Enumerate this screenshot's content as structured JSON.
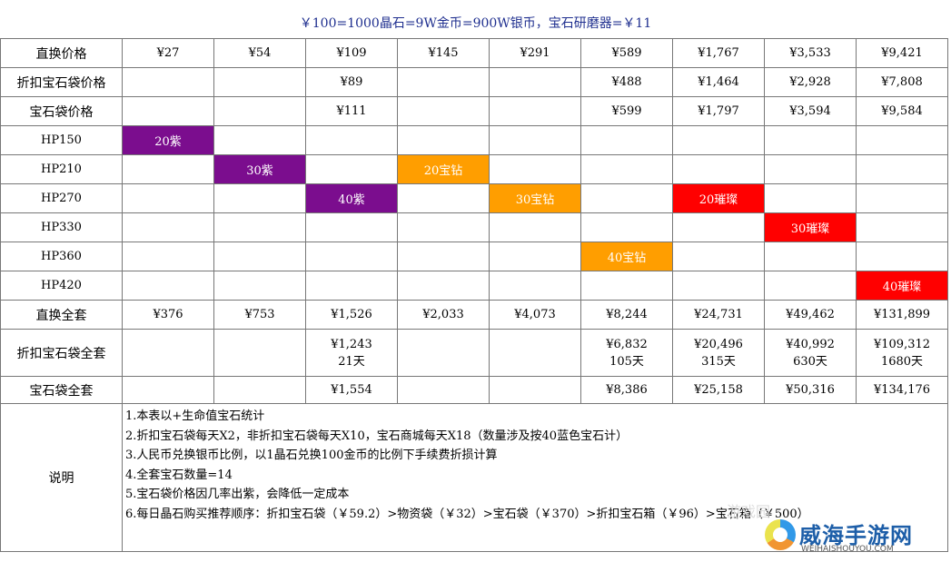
{
  "title": "￥100=1000晶石=9W金币=900W银币，宝石研磨器=￥11",
  "rows": {
    "direct_price": {
      "label": "直换价格",
      "cells": [
        "¥27",
        "¥54",
        "¥109",
        "¥145",
        "¥291",
        "¥589",
        "¥1,767",
        "¥3,533",
        "¥9,421"
      ]
    },
    "discount_bag_price": {
      "label": "折扣宝石袋价格",
      "cells": [
        "",
        "",
        "¥89",
        "",
        "",
        "¥488",
        "¥1,464",
        "¥2,928",
        "¥7,808"
      ]
    },
    "bag_price": {
      "label": "宝石袋价格",
      "cells": [
        "",
        "",
        "¥111",
        "",
        "",
        "¥599",
        "¥1,797",
        "¥3,594",
        "¥9,584"
      ]
    },
    "hp150": {
      "label": "HP150",
      "cells": [
        "20紫",
        "",
        "",
        "",
        "",
        "",
        "",
        "",
        ""
      ]
    },
    "hp210": {
      "label": "HP210",
      "cells": [
        "",
        "30紫",
        "",
        "20宝钻",
        "",
        "",
        "",
        "",
        ""
      ]
    },
    "hp270": {
      "label": "HP270",
      "cells": [
        "",
        "",
        "40紫",
        "",
        "30宝钻",
        "",
        "20璀璨",
        "",
        ""
      ]
    },
    "hp330": {
      "label": "HP330",
      "cells": [
        "",
        "",
        "",
        "",
        "",
        "",
        "",
        "30璀璨",
        ""
      ]
    },
    "hp360": {
      "label": "HP360",
      "cells": [
        "",
        "",
        "",
        "",
        "",
        "40宝钻",
        "",
        "",
        ""
      ]
    },
    "hp420": {
      "label": "HP420",
      "cells": [
        "",
        "",
        "",
        "",
        "",
        "",
        "",
        "",
        "40璀璨"
      ]
    },
    "direct_full": {
      "label": "直换全套",
      "cells": [
        "¥376",
        "¥753",
        "¥1,526",
        "¥2,033",
        "¥4,073",
        "¥8,244",
        "¥24,731",
        "¥49,462",
        "¥131,899"
      ]
    },
    "discount_full": {
      "label": "折扣宝石袋全套",
      "cells": [
        "",
        "",
        "¥1,243",
        "",
        "",
        "¥6,832",
        "¥20,496",
        "¥40,992",
        "¥109,312"
      ],
      "days": [
        "",
        "",
        "21天",
        "",
        "",
        "105天",
        "315天",
        "630天",
        "1680天"
      ]
    },
    "bag_full": {
      "label": "宝石袋全套",
      "cells": [
        "",
        "",
        "¥1,554",
        "",
        "",
        "¥8,386",
        "¥25,158",
        "¥50,316",
        "¥134,176"
      ]
    }
  },
  "notes": {
    "label": "说明",
    "lines": [
      "1.本表以+生命值宝石统计",
      "2.折扣宝石袋每天X2，非折扣宝石袋每天X10，宝石商城每天X18（数量涉及按40蓝色宝石计）",
      "3.人民币兑换银币比例，以1晶石兑换100金币的比例下手续费折损计算",
      "4.全套宝石数量=14",
      "5.宝石袋价格因几率出紫，会降低一定成本",
      "6.每日晶石购买推荐顺序：折扣宝石袋（￥59.2）>物资袋（￥32）>宝石袋（￥370）>折扣宝石箱（￥96）>宝石箱（￥500）"
    ]
  },
  "watermark": {
    "brand": "威海手游网",
    "site": "WEIHAISHOUYOU.COM",
    "faint": "游戏园"
  },
  "colors": {
    "purple": "#7b0d8e",
    "orange": "#ff9e00",
    "red": "#ff0000",
    "title": "#1f2f8f"
  }
}
